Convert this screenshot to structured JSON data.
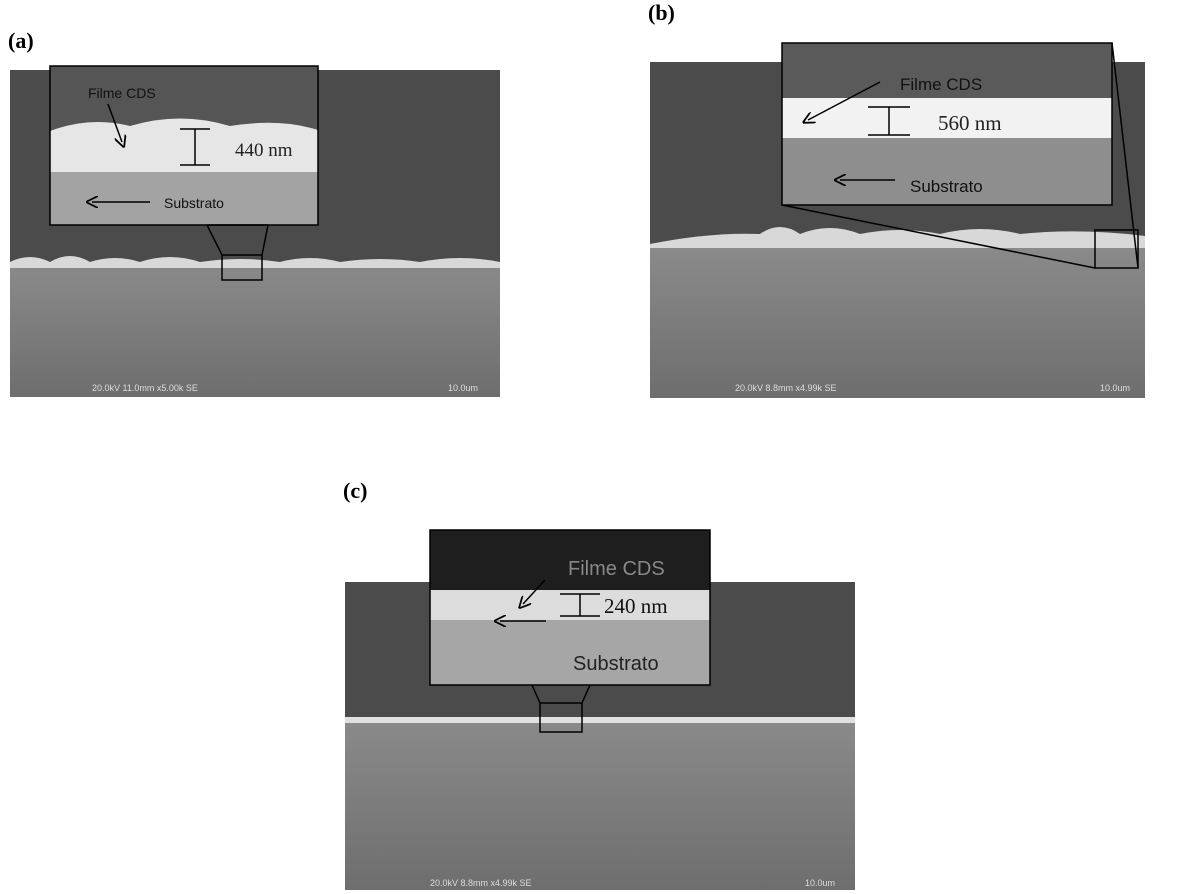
{
  "panels": [
    {
      "label": "(a)",
      "film_label": "Filme CDS",
      "thickness": "440 nm",
      "substrate_label": "Substrato",
      "sem_info": "20.0kV 11.0mm x5.00k SE",
      "scale": "10.0um"
    },
    {
      "label": "(b)",
      "film_label": "Filme CDS",
      "thickness": "560 nm",
      "substrate_label": "Substrato",
      "sem_info": "20.0kV 8.8mm x4.99k SE",
      "scale": "10.0um"
    },
    {
      "label": "(c)",
      "film_label": "Filme CDS",
      "thickness": "240 nm",
      "substrate_label": "Substrato",
      "sem_info": "20.0kV 8.8mm x4.99k SE",
      "scale": "10.0um"
    }
  ]
}
